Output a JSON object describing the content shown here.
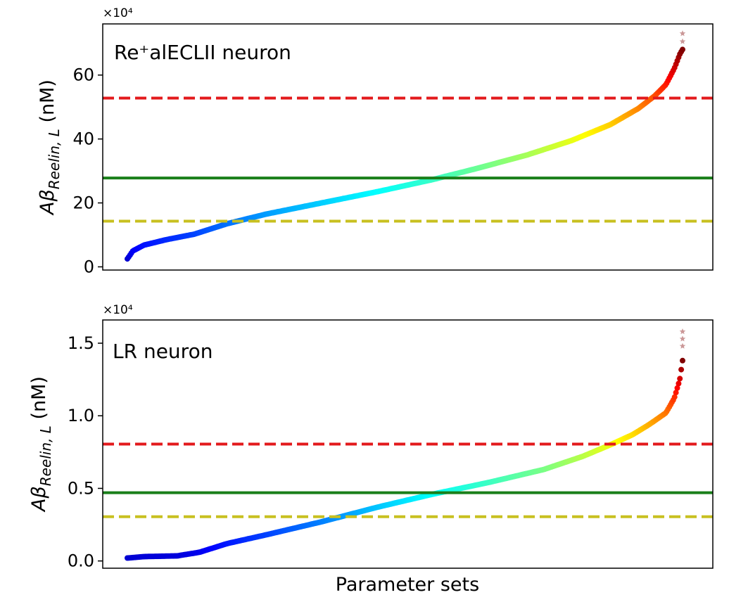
{
  "chart_data": [
    {
      "type": "scatter",
      "panel_label": "Re⁺alECLII neuron",
      "ylabel_main": "Aβ",
      "ylabel_sub": "Reelin, L",
      "ylabel_unit": " (nM)",
      "xlabel": "",
      "multiplier_label": "×10⁴",
      "ylim": [
        -1,
        76
      ],
      "yticks": [
        0,
        20,
        40,
        60
      ],
      "ytick_labels": [
        "0",
        "20",
        "40",
        "60"
      ],
      "x_range": [
        0,
        1
      ],
      "grid": false,
      "curve_knots": [
        {
          "x": 0.0,
          "y": 2.5
        },
        {
          "x": 0.01,
          "y": 5.0
        },
        {
          "x": 0.03,
          "y": 6.8
        },
        {
          "x": 0.07,
          "y": 8.5
        },
        {
          "x": 0.12,
          "y": 10.2
        },
        {
          "x": 0.18,
          "y": 13.5
        },
        {
          "x": 0.25,
          "y": 16.5
        },
        {
          "x": 0.35,
          "y": 20.0
        },
        {
          "x": 0.45,
          "y": 23.5
        },
        {
          "x": 0.55,
          "y": 27.3
        },
        {
          "x": 0.63,
          "y": 30.8
        },
        {
          "x": 0.72,
          "y": 35.0
        },
        {
          "x": 0.8,
          "y": 39.5
        },
        {
          "x": 0.87,
          "y": 44.5
        },
        {
          "x": 0.92,
          "y": 49.5
        },
        {
          "x": 0.95,
          "y": 53.5
        },
        {
          "x": 0.97,
          "y": 57.0
        },
        {
          "x": 0.985,
          "y": 62.0
        },
        {
          "x": 0.995,
          "y": 66.5
        },
        {
          "x": 1.0,
          "y": 68.0
        }
      ],
      "outliers": [
        {
          "x": 1.0,
          "y": 70.5
        },
        {
          "x": 1.0,
          "y": 73.0
        }
      ],
      "hlines": [
        {
          "y": 52.8,
          "color": "#e31a1c",
          "style": "dashed"
        },
        {
          "y": 27.8,
          "color": "#1a7f1a",
          "style": "solid"
        },
        {
          "y": 14.3,
          "color": "#c8c020",
          "style": "dashed"
        }
      ]
    },
    {
      "type": "scatter",
      "panel_label": "LR neuron",
      "ylabel_main": "Aβ",
      "ylabel_sub": "Reelin, L",
      "ylabel_unit": " (nM)",
      "xlabel": "Parameter sets",
      "multiplier_label": "×10⁴",
      "ylim": [
        -0.05,
        1.66
      ],
      "yticks": [
        0.0,
        0.5,
        1.0,
        1.5
      ],
      "ytick_labels": [
        "0.0",
        "0.5",
        "1.0",
        "1.5"
      ],
      "x_range": [
        0,
        1
      ],
      "grid": false,
      "curve_knots": [
        {
          "x": 0.0,
          "y": 0.02
        },
        {
          "x": 0.03,
          "y": 0.03
        },
        {
          "x": 0.09,
          "y": 0.035
        },
        {
          "x": 0.13,
          "y": 0.06
        },
        {
          "x": 0.18,
          "y": 0.12
        },
        {
          "x": 0.25,
          "y": 0.18
        },
        {
          "x": 0.35,
          "y": 0.27
        },
        {
          "x": 0.45,
          "y": 0.37
        },
        {
          "x": 0.55,
          "y": 0.46
        },
        {
          "x": 0.65,
          "y": 0.54
        },
        {
          "x": 0.75,
          "y": 0.63
        },
        {
          "x": 0.82,
          "y": 0.72
        },
        {
          "x": 0.87,
          "y": 0.8
        },
        {
          "x": 0.91,
          "y": 0.87
        },
        {
          "x": 0.94,
          "y": 0.94
        },
        {
          "x": 0.97,
          "y": 1.02
        },
        {
          "x": 0.985,
          "y": 1.12
        },
        {
          "x": 0.995,
          "y": 1.25
        },
        {
          "x": 1.0,
          "y": 1.38
        }
      ],
      "outliers": [
        {
          "x": 1.0,
          "y": 1.48
        },
        {
          "x": 1.0,
          "y": 1.53
        },
        {
          "x": 1.0,
          "y": 1.58
        }
      ],
      "hlines": [
        {
          "y": 0.805,
          "color": "#e31a1c",
          "style": "dashed"
        },
        {
          "y": 0.47,
          "color": "#1a7f1a",
          "style": "solid"
        },
        {
          "y": 0.305,
          "color": "#c8c020",
          "style": "dashed"
        }
      ]
    }
  ],
  "colormap": "jet"
}
